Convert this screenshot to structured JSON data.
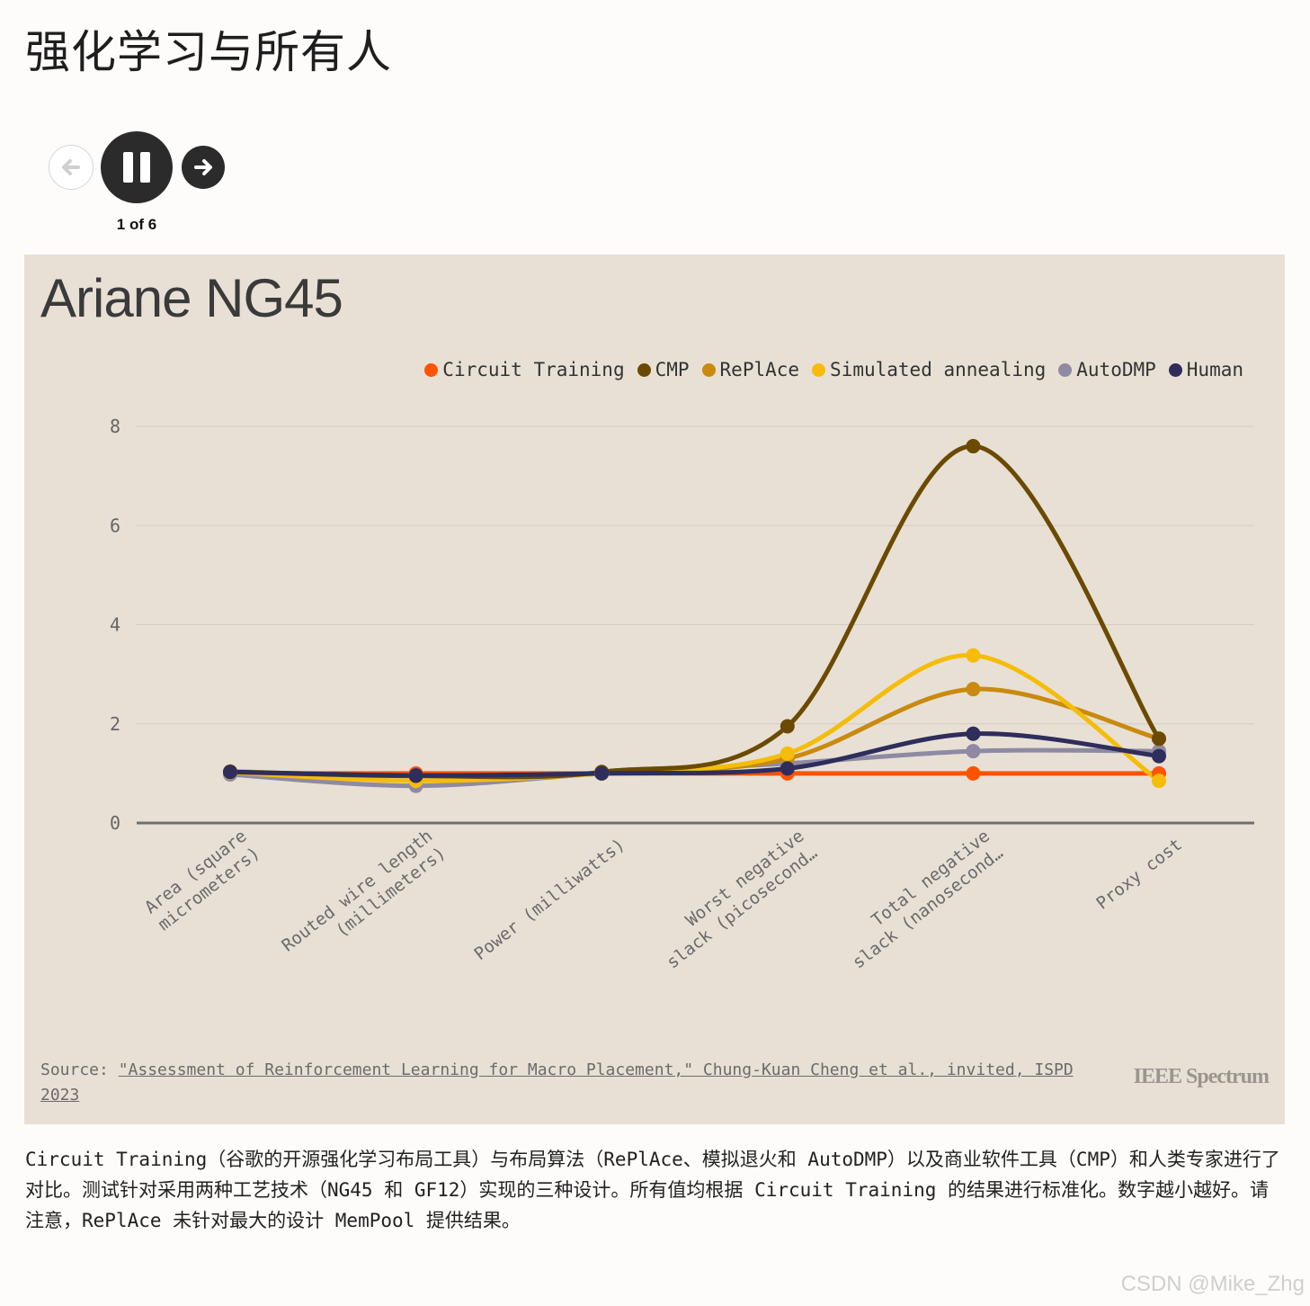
{
  "page": {
    "title": "强化学习与所有人",
    "slide_counter": "1 of 6",
    "caption": "Circuit Training（谷歌的开源强化学习布局工具）与布局算法（RePlAce、模拟退火和 AutoDMP）以及商业软件工具（CMP）和人类专家进行了对比。测试针对采用两种工艺技术（NG45 和 GF12）实现的三种设计。所有值均根据 Circuit Training 的结果进行标准化。数字越小越好。请注意，RePlAce 未针对最大的设计 MemPool 提供结果。",
    "watermark": "CSDN @Mike_Zhg"
  },
  "controls": {
    "prev_icon": "arrow-left-icon",
    "pause_icon": "pause-icon",
    "next_icon": "arrow-right-icon"
  },
  "chart": {
    "source_prefix": "Source: ",
    "source_link": "\"Assessment of Reinforcement Learning for Macro Placement,\" Chung-Kuan Cheng et al., invited, ISPD 2023",
    "brand": "IEEE Spectrum"
  },
  "chart_data": {
    "type": "line",
    "title": "Ariane NG45",
    "categories": [
      [
        "Area (square",
        "micrometers)"
      ],
      [
        "Routed wire length",
        "(millimeters)"
      ],
      [
        "Power (milliwatts)"
      ],
      [
        "Worst negative",
        "slack (picosecond…"
      ],
      [
        "Total negative",
        "slack (nanosecond…"
      ],
      [
        "Proxy cost"
      ]
    ],
    "ylim": [
      0,
      8
    ],
    "yticks": [
      0,
      2,
      4,
      6,
      8
    ],
    "grid": true,
    "legend_position": "top-right",
    "series": [
      {
        "name": "Circuit Training",
        "color": "#ff5300",
        "values": [
          1,
          1,
          1,
          1,
          1,
          1
        ]
      },
      {
        "name": "CMP",
        "color": "#6b4a00",
        "values": [
          1.03,
          0.95,
          1.03,
          1.95,
          7.6,
          1.7
        ]
      },
      {
        "name": "RePlAce",
        "color": "#c98a0f",
        "values": [
          1.04,
          0.95,
          1.0,
          1.3,
          2.7,
          1.7
        ]
      },
      {
        "name": "Simulated annealing",
        "color": "#f5bd0a",
        "values": [
          1.02,
          0.85,
          1.0,
          1.4,
          3.38,
          0.85
        ]
      },
      {
        "name": "AutoDMP",
        "color": "#8e8aa3",
        "values": [
          0.98,
          0.75,
          1.0,
          1.2,
          1.45,
          1.45
        ]
      },
      {
        "name": "Human",
        "color": "#2e2d5c",
        "values": [
          1.03,
          0.96,
          1.0,
          1.1,
          1.8,
          1.35
        ]
      }
    ]
  }
}
